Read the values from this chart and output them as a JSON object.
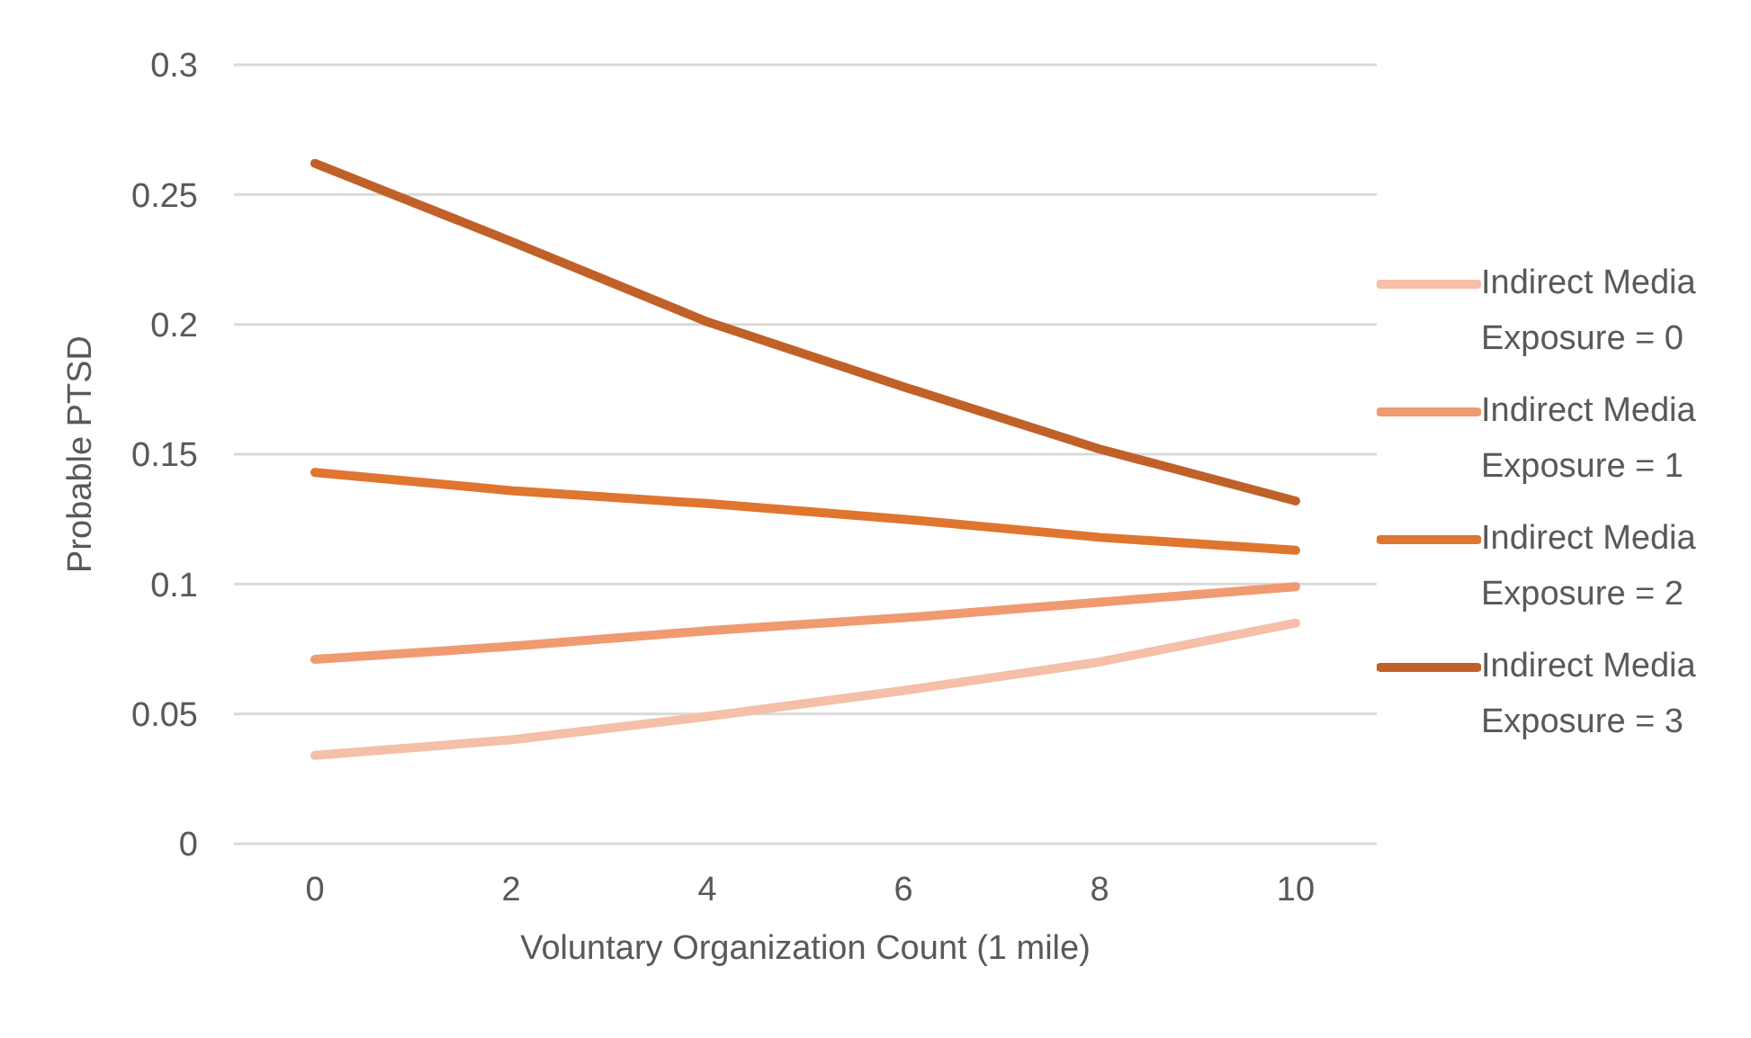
{
  "chart_data": {
    "type": "line",
    "xlabel": "Voluntary Organization Count (1 mile)",
    "ylabel": "Probable PTSD",
    "categories": [
      "0",
      "2",
      "4",
      "6",
      "8",
      "10"
    ],
    "series": [
      {
        "name": "Indirect Media Exposure = 0",
        "color": "#f5bfa8",
        "values": [
          0.034,
          0.04,
          0.049,
          0.059,
          0.07,
          0.085
        ]
      },
      {
        "name": "Indirect Media Exposure = 1",
        "color": "#f09a72",
        "values": [
          0.071,
          0.076,
          0.082,
          0.087,
          0.093,
          0.099
        ]
      },
      {
        "name": "Indirect Media Exposure = 2",
        "color": "#e07530",
        "values": [
          0.143,
          0.136,
          0.131,
          0.125,
          0.118,
          0.113
        ]
      },
      {
        "name": "Indirect Media Exposure = 3",
        "color": "#c0612a",
        "values": [
          0.262,
          0.232,
          0.201,
          0.176,
          0.152,
          0.132
        ]
      }
    ],
    "ylim": [
      0,
      0.3
    ],
    "yticks": [
      0,
      0.05,
      0.1,
      0.15,
      0.2,
      0.25,
      0.3
    ],
    "grid": "y",
    "legend": "right",
    "marker": "none",
    "line_style": "solid"
  }
}
